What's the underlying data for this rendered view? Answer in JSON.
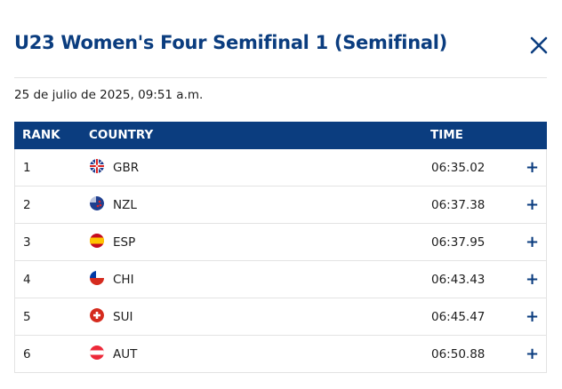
{
  "header": {
    "title": "U23 Women's Four Semifinal 1 (Semifinal)",
    "date": "25 de julio de 2025, 09:51 a.m."
  },
  "table": {
    "columns": [
      "RANK",
      "COUNTRY",
      "TIME"
    ],
    "rows": [
      {
        "rank": 1,
        "country": "GBR",
        "time": "06:35.02"
      },
      {
        "rank": 2,
        "country": "NZL",
        "time": "06:37.38"
      },
      {
        "rank": 3,
        "country": "ESP",
        "time": "06:37.95"
      },
      {
        "rank": 4,
        "country": "CHI",
        "time": "06:43.43"
      },
      {
        "rank": 5,
        "country": "SUI",
        "time": "06:45.47"
      },
      {
        "rank": 6,
        "country": "AUT",
        "time": "06:50.88"
      }
    ]
  }
}
